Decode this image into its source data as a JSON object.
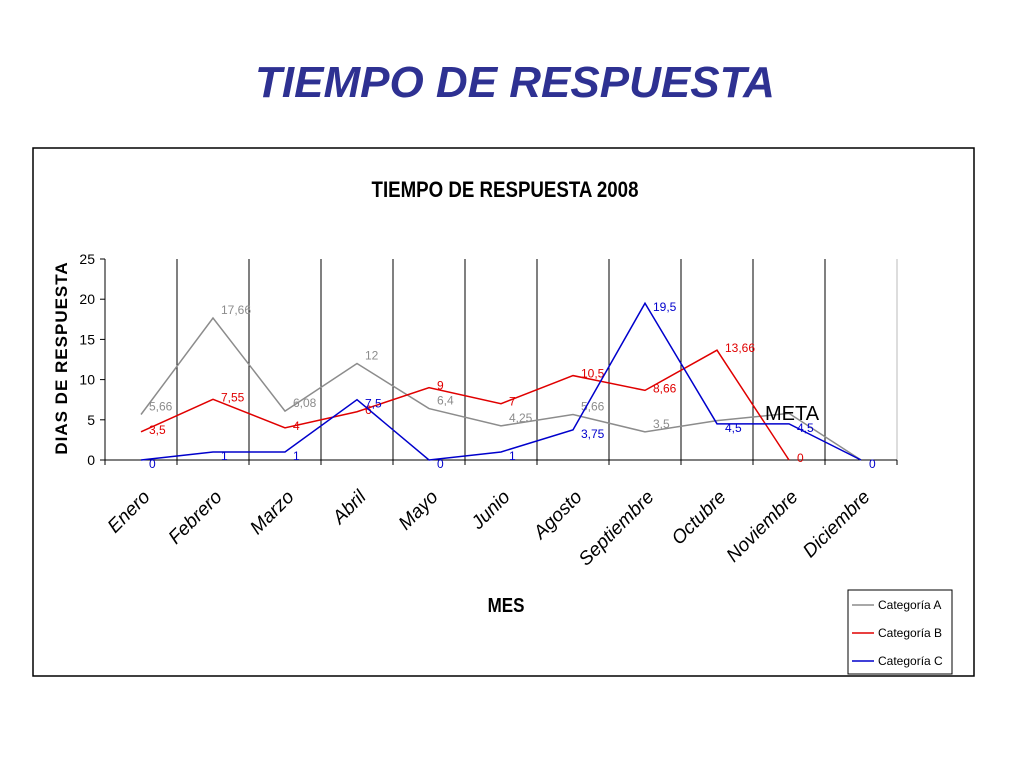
{
  "slide_title": "TIEMPO DE RESPUESTA",
  "chart_data": {
    "type": "line",
    "title": "TIEMPO DE RESPUESTA 2008",
    "x_label": "MES",
    "y_label": "DIAS DE RESPUESTA",
    "categories": [
      "Enero",
      "Febrero",
      "Marzo",
      "Abril",
      "Mayo",
      "Junio",
      "Agosto",
      "Septiembre",
      "Octubre",
      "Noviembre",
      "Diciembre"
    ],
    "series": [
      {
        "name": "Categoría A",
        "color": "#8c8c8c",
        "values": [
          5.66,
          17.66,
          6.08,
          12,
          6.4,
          4.25,
          5.66,
          3.5,
          4.9,
          5.8,
          0
        ],
        "value_labels": [
          "5,66",
          "17,66",
          "6,08",
          "12",
          "6,4",
          "4,25",
          "5,66",
          "3,5",
          null,
          null,
          null
        ]
      },
      {
        "name": "Categoría B",
        "color": "#e00000",
        "values": [
          3.5,
          7.55,
          4,
          6,
          9,
          7,
          10.5,
          8.66,
          13.66,
          0,
          null
        ],
        "value_labels": [
          "3,5",
          "7,55",
          "4",
          "6",
          "9",
          "7",
          "10,5",
          "8,66",
          "13,66",
          "0",
          null
        ]
      },
      {
        "name": "Categoría C",
        "color": "#0000cc",
        "values": [
          0,
          1,
          1,
          7.5,
          0,
          1,
          3.75,
          19.5,
          4.5,
          4.5,
          0
        ],
        "value_labels": [
          "0",
          "1",
          "1",
          "7,5",
          "0",
          "1",
          "3,75",
          "19,5",
          "4,5",
          "4,5",
          "0"
        ]
      }
    ],
    "ylim": [
      0,
      25
    ],
    "yticks": [
      0,
      5,
      10,
      15,
      20,
      25
    ],
    "grid": true,
    "legend": "lower-right",
    "annotations": [
      {
        "text": "META"
      }
    ]
  }
}
